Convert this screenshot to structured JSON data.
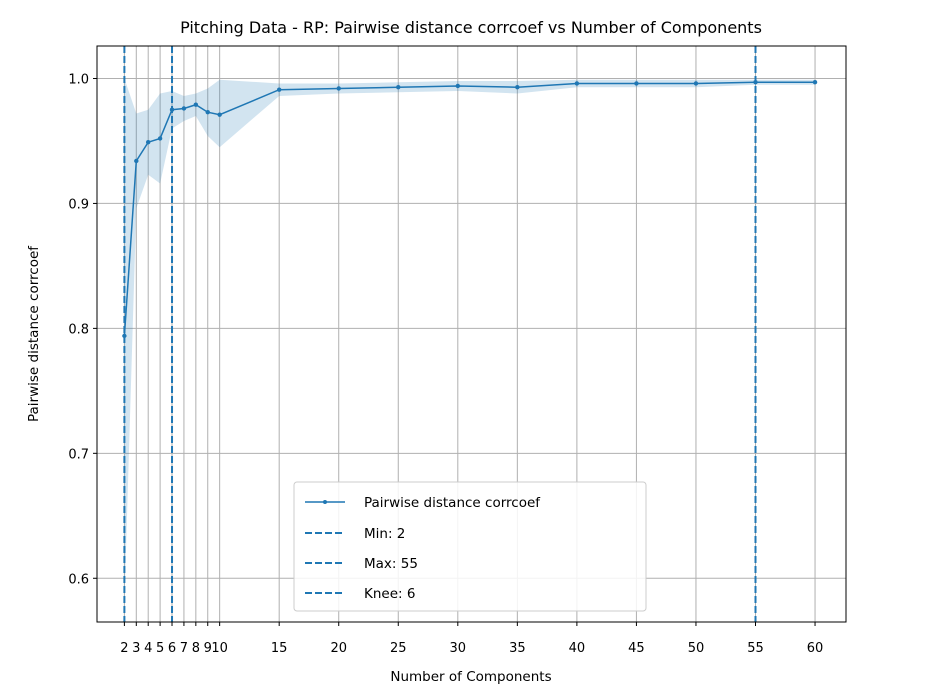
{
  "chart_data": {
    "type": "line",
    "title": "Pitching Data - RP: Pairwise distance corrcoef vs Number of Components",
    "xlabel": "Number of Components",
    "ylabel": "Pairwise distance corrcoef",
    "xlim": [
      -0.3,
      62.6
    ],
    "ylim": [
      0.565,
      1.026
    ],
    "xticks": [
      2,
      3,
      4,
      5,
      6,
      7,
      8,
      9,
      10,
      15,
      20,
      25,
      30,
      35,
      40,
      45,
      50,
      55,
      60
    ],
    "yticks": [
      0.6,
      0.7,
      0.8,
      0.9,
      1.0
    ],
    "ytick_labels": [
      "0.6",
      "0.7",
      "0.8",
      "0.9",
      "1.0"
    ],
    "grid": true,
    "legend_position": "bottom-center",
    "series": [
      {
        "name": "Pairwise distance corrcoef",
        "color": "#1f77b4",
        "x": [
          2,
          3,
          4,
          5,
          6,
          7,
          8,
          9,
          10,
          15,
          20,
          25,
          30,
          35,
          40,
          45,
          50,
          55,
          60
        ],
        "y": [
          0.794,
          0.934,
          0.949,
          0.952,
          0.975,
          0.976,
          0.979,
          0.973,
          0.971,
          0.991,
          0.992,
          0.993,
          0.994,
          0.993,
          0.996,
          0.996,
          0.996,
          0.997,
          0.997
        ]
      }
    ],
    "band": {
      "color": "#1f77b4",
      "upper": [
        1.0,
        0.972,
        0.975,
        0.988,
        0.99,
        0.986,
        0.988,
        0.992,
        0.999,
        0.996,
        0.996,
        0.997,
        0.998,
        0.998,
        0.999,
        0.999,
        0.999,
        0.999,
        0.999
      ],
      "lower": [
        0.58,
        0.896,
        0.923,
        0.916,
        0.96,
        0.966,
        0.97,
        0.954,
        0.945,
        0.986,
        0.988,
        0.989,
        0.99,
        0.988,
        0.993,
        0.993,
        0.993,
        0.995,
        0.995
      ]
    },
    "vlines": [
      {
        "label": "Min: 2",
        "x": 2
      },
      {
        "label": "Max: 55",
        "x": 55
      },
      {
        "label": "Knee: 6",
        "x": 6
      }
    ]
  }
}
